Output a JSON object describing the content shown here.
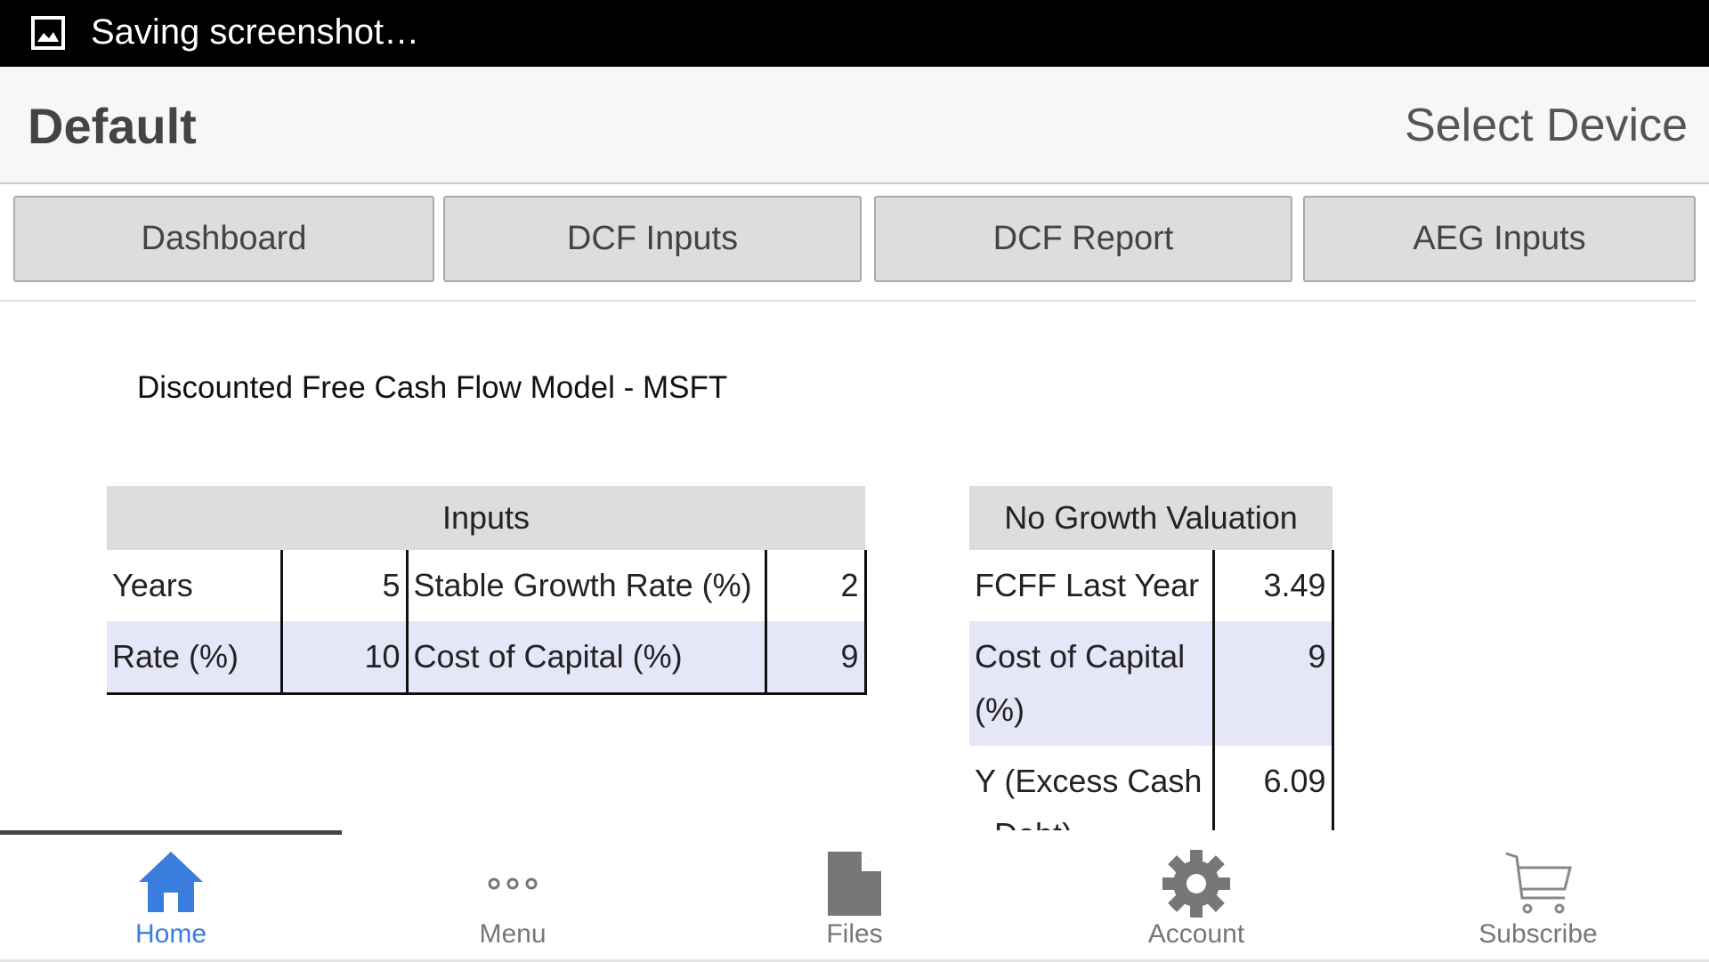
{
  "status_bar": {
    "text": "Saving screenshot…"
  },
  "header": {
    "title": "Default",
    "action": "Select Device"
  },
  "tabs": [
    "Dashboard",
    "DCF Inputs",
    "DCF Report",
    "AEG Inputs"
  ],
  "page_title": "Discounted Free Cash Flow Model - MSFT",
  "inputs_table": {
    "title": "Inputs",
    "rows": [
      [
        "Years",
        5,
        "Stable Growth Rate (%)",
        2
      ],
      [
        "Rate (%)",
        10,
        "Cost of Capital (%)",
        9
      ]
    ]
  },
  "valuation_table": {
    "title": "No Growth Valuation",
    "rows": [
      [
        "FCFF Last Year",
        3.49
      ],
      [
        "Cost of Capital (%)",
        9
      ],
      [
        "Y (Excess Cash - Debt)",
        6.09
      ]
    ]
  },
  "nav": [
    "Home",
    "Menu",
    "Files",
    "Account",
    "Subscribe"
  ]
}
